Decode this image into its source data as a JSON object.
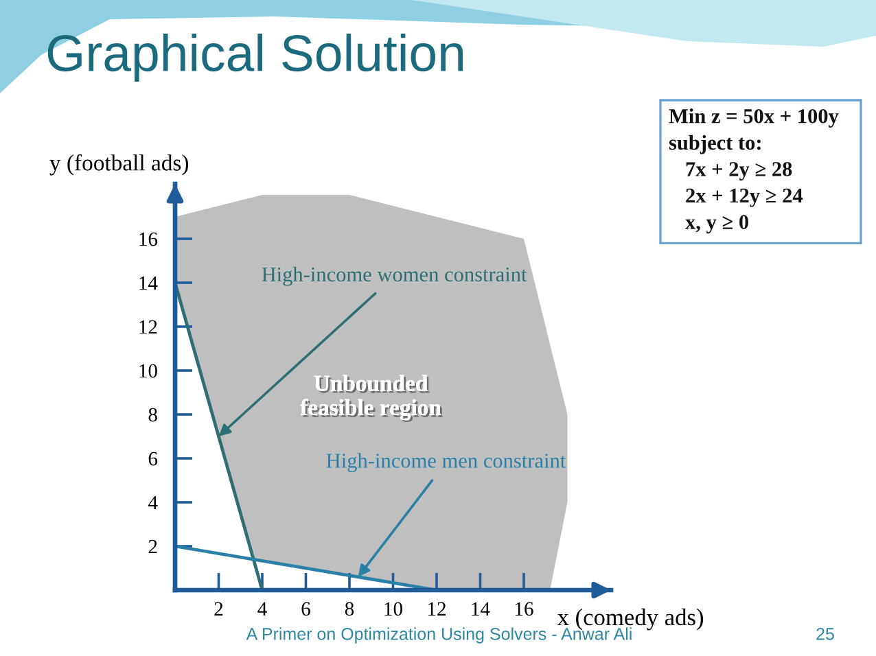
{
  "chart_data": {
    "type": "line",
    "title": "Graphical Solution",
    "xlabel": "x (comedy ads)",
    "ylabel": "y (football ads)",
    "xlim": [
      0,
      20
    ],
    "ylim": [
      0,
      18.5
    ],
    "xticks": [
      2,
      4,
      6,
      8,
      10,
      12,
      14,
      16
    ],
    "yticks": [
      2,
      4,
      6,
      8,
      10,
      12,
      14,
      16
    ],
    "series": [
      {
        "type": "area",
        "name": "Unbounded\nfeasible region",
        "color": "#bfbfbf",
        "x": [
          0,
          4,
          8,
          16,
          18,
          18,
          17.2,
          12,
          3.6,
          0
        ],
        "values": [
          17,
          18,
          18,
          16,
          8,
          4,
          0,
          0,
          1.4,
          14
        ]
      },
      {
        "name": "High-income women constraint",
        "color": "#2e6f73",
        "x": [
          0,
          4
        ],
        "values": [
          14,
          0
        ]
      },
      {
        "name": "High-income men constraint",
        "color": "#2a80a6",
        "x": [
          0,
          12
        ],
        "values": [
          2,
          0
        ]
      }
    ],
    "annotations": [
      "Min z = 50x + 100y\nsubject to:\n7x + 2y ≥ 28\n2x + 12y ≥ 24\nx, y ≥ 0",
      "A Primer on Optimization Using Solvers - Anwar Ali",
      "25"
    ]
  }
}
